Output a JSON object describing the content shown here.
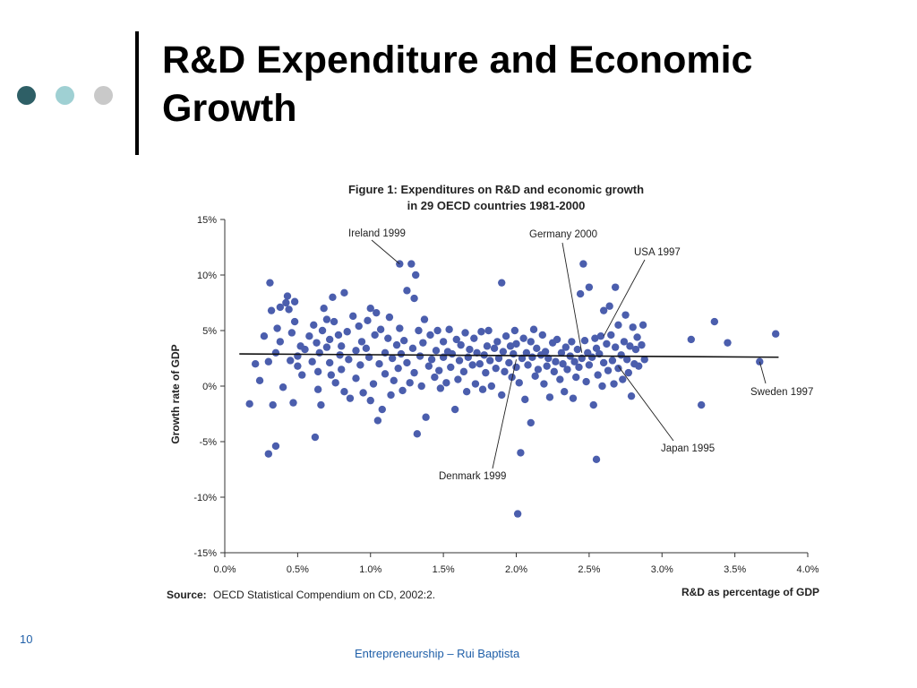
{
  "slide": {
    "title_line1": "R&D Expenditure and Economic",
    "title_line2": "Growth",
    "number": "10",
    "footer": "Entrepreneurship – Rui Baptista",
    "dot_colors": [
      "#2e5f66",
      "#9fd0d3",
      "#c9c9c9"
    ]
  },
  "chart_data": {
    "type": "scatter",
    "title_line1": "Figure 1: Expenditures on R&D and economic growth",
    "title_line2": "in 29 OECD countries 1981-2000",
    "xlabel": "R&D as percentage of GDP",
    "ylabel": "Growth rate of GDP",
    "source_label": "Source:",
    "source_text": "OECD Statistical Compendium on CD, 2002:2.",
    "xlim": [
      0,
      4.0
    ],
    "ylim": [
      -15,
      15
    ],
    "x_ticks": [
      "0.0%",
      "0.5%",
      "1.0%",
      "1.5%",
      "2.0%",
      "2.5%",
      "3.0%",
      "3.5%",
      "4.0%"
    ],
    "y_ticks": [
      "15%",
      "10%",
      "5%",
      "0%",
      "-5%",
      "-10%",
      "-15%"
    ],
    "marker_color": "#4b5ead",
    "trend": {
      "x": [
        0.1,
        3.8
      ],
      "y": [
        2.9,
        2.6
      ]
    },
    "annotations": [
      {
        "label": "Ireland 1999",
        "x": 1.2,
        "y": 11.0
      },
      {
        "label": "Germany 2000",
        "x": 2.45,
        "y": 3.0
      },
      {
        "label": "USA 1997",
        "x": 2.6,
        "y": 4.5
      },
      {
        "label": "Sweden 1997",
        "x": 3.67,
        "y": 2.2
      },
      {
        "label": "Japan 1995",
        "x": 2.7,
        "y": 1.8
      },
      {
        "label": "Denmark 1999",
        "x": 2.0,
        "y": 2.4
      }
    ],
    "points": [
      [
        0.17,
        -1.6
      ],
      [
        0.21,
        2.0
      ],
      [
        0.24,
        0.5
      ],
      [
        0.27,
        4.5
      ],
      [
        0.3,
        2.2
      ],
      [
        0.31,
        9.3
      ],
      [
        0.3,
        -6.1
      ],
      [
        0.32,
        6.8
      ],
      [
        0.33,
        -1.7
      ],
      [
        0.35,
        -5.4
      ],
      [
        0.35,
        3.0
      ],
      [
        0.36,
        5.2
      ],
      [
        0.38,
        4.0
      ],
      [
        0.38,
        7.1
      ],
      [
        0.4,
        -0.1
      ],
      [
        0.42,
        7.5
      ],
      [
        0.43,
        8.1
      ],
      [
        0.44,
        6.9
      ],
      [
        0.45,
        2.3
      ],
      [
        0.46,
        4.8
      ],
      [
        0.47,
        -1.5
      ],
      [
        0.48,
        7.6
      ],
      [
        0.48,
        5.8
      ],
      [
        0.5,
        1.8
      ],
      [
        0.5,
        2.7
      ],
      [
        0.52,
        3.6
      ],
      [
        0.53,
        1.0
      ],
      [
        0.55,
        3.3
      ],
      [
        0.58,
        4.5
      ],
      [
        0.6,
        2.2
      ],
      [
        0.61,
        5.5
      ],
      [
        0.62,
        -4.6
      ],
      [
        0.63,
        3.9
      ],
      [
        0.64,
        1.3
      ],
      [
        0.64,
        -0.3
      ],
      [
        0.65,
        3.0
      ],
      [
        0.66,
        -1.7
      ],
      [
        0.67,
        5.0
      ],
      [
        0.68,
        7.0
      ],
      [
        0.7,
        6.0
      ],
      [
        0.7,
        3.5
      ],
      [
        0.72,
        4.2
      ],
      [
        0.72,
        2.1
      ],
      [
        0.73,
        1.0
      ],
      [
        0.74,
        8.0
      ],
      [
        0.75,
        5.8
      ],
      [
        0.76,
        0.3
      ],
      [
        0.78,
        4.6
      ],
      [
        0.79,
        2.8
      ],
      [
        0.8,
        3.6
      ],
      [
        0.8,
        1.5
      ],
      [
        0.82,
        8.4
      ],
      [
        0.82,
        -0.5
      ],
      [
        0.84,
        4.9
      ],
      [
        0.85,
        2.4
      ],
      [
        0.86,
        -1.1
      ],
      [
        0.88,
        6.3
      ],
      [
        0.9,
        3.2
      ],
      [
        0.9,
        0.7
      ],
      [
        0.92,
        5.4
      ],
      [
        0.93,
        1.9
      ],
      [
        0.94,
        4.0
      ],
      [
        0.95,
        -0.6
      ],
      [
        0.97,
        3.4
      ],
      [
        0.98,
        5.9
      ],
      [
        0.99,
        2.6
      ],
      [
        1.0,
        7.0
      ],
      [
        1.0,
        -1.3
      ],
      [
        1.02,
        0.2
      ],
      [
        1.03,
        4.6
      ],
      [
        1.04,
        6.6
      ],
      [
        1.05,
        -3.1
      ],
      [
        1.06,
        2.0
      ],
      [
        1.07,
        5.1
      ],
      [
        1.08,
        -2.1
      ],
      [
        1.1,
        3.0
      ],
      [
        1.1,
        1.1
      ],
      [
        1.12,
        4.3
      ],
      [
        1.13,
        6.2
      ],
      [
        1.14,
        -0.8
      ],
      [
        1.15,
        2.5
      ],
      [
        1.16,
        0.5
      ],
      [
        1.18,
        3.7
      ],
      [
        1.19,
        1.6
      ],
      [
        1.2,
        11.0
      ],
      [
        1.2,
        5.2
      ],
      [
        1.21,
        2.9
      ],
      [
        1.22,
        -0.4
      ],
      [
        1.23,
        4.1
      ],
      [
        1.25,
        8.6
      ],
      [
        1.25,
        2.1
      ],
      [
        1.27,
        0.3
      ],
      [
        1.28,
        11.0
      ],
      [
        1.29,
        3.4
      ],
      [
        1.3,
        7.9
      ],
      [
        1.3,
        1.2
      ],
      [
        1.31,
        10.0
      ],
      [
        1.32,
        -4.3
      ],
      [
        1.33,
        5.0
      ],
      [
        1.34,
        2.7
      ],
      [
        1.35,
        0.0
      ],
      [
        1.36,
        3.9
      ],
      [
        1.37,
        6.0
      ],
      [
        1.38,
        -2.8
      ],
      [
        1.4,
        1.8
      ],
      [
        1.41,
        4.6
      ],
      [
        1.42,
        2.4
      ],
      [
        1.44,
        0.8
      ],
      [
        1.45,
        3.2
      ],
      [
        1.46,
        5.0
      ],
      [
        1.47,
        1.4
      ],
      [
        1.48,
        -0.2
      ],
      [
        1.5,
        2.6
      ],
      [
        1.5,
        4.0
      ],
      [
        1.52,
        0.3
      ],
      [
        1.53,
        3.1
      ],
      [
        1.54,
        5.1
      ],
      [
        1.55,
        1.7
      ],
      [
        1.56,
        2.9
      ],
      [
        1.58,
        -2.1
      ],
      [
        1.59,
        4.2
      ],
      [
        1.6,
        0.6
      ],
      [
        1.61,
        2.3
      ],
      [
        1.62,
        3.7
      ],
      [
        1.64,
        1.3
      ],
      [
        1.65,
        4.8
      ],
      [
        1.66,
        -0.5
      ],
      [
        1.67,
        2.6
      ],
      [
        1.68,
        3.3
      ],
      [
        1.7,
        1.9
      ],
      [
        1.71,
        4.3
      ],
      [
        1.72,
        0.2
      ],
      [
        1.73,
        3.0
      ],
      [
        1.75,
        2.0
      ],
      [
        1.76,
        4.9
      ],
      [
        1.77,
        -0.3
      ],
      [
        1.78,
        2.8
      ],
      [
        1.79,
        1.2
      ],
      [
        1.8,
        3.6
      ],
      [
        1.81,
        5.0
      ],
      [
        1.82,
        2.3
      ],
      [
        1.83,
        0.0
      ],
      [
        1.85,
        3.4
      ],
      [
        1.86,
        1.6
      ],
      [
        1.87,
        4.0
      ],
      [
        1.88,
        2.5
      ],
      [
        1.9,
        9.3
      ],
      [
        1.9,
        -0.8
      ],
      [
        1.91,
        3.1
      ],
      [
        1.92,
        1.3
      ],
      [
        1.93,
        4.5
      ],
      [
        1.95,
        2.1
      ],
      [
        1.96,
        3.6
      ],
      [
        1.97,
        0.8
      ],
      [
        1.98,
        2.9
      ],
      [
        1.99,
        5.0
      ],
      [
        2.0,
        1.7
      ],
      [
        2.0,
        3.8
      ],
      [
        2.01,
        -11.5
      ],
      [
        2.02,
        0.3
      ],
      [
        2.03,
        -6.0
      ],
      [
        2.04,
        2.5
      ],
      [
        2.05,
        4.3
      ],
      [
        2.06,
        -1.2
      ],
      [
        2.07,
        3.0
      ],
      [
        2.08,
        1.9
      ],
      [
        2.1,
        4.0
      ],
      [
        2.1,
        -3.3
      ],
      [
        2.11,
        2.6
      ],
      [
        2.12,
        5.1
      ],
      [
        2.13,
        0.9
      ],
      [
        2.14,
        3.4
      ],
      [
        2.15,
        1.5
      ],
      [
        2.17,
        2.8
      ],
      [
        2.18,
        4.6
      ],
      [
        2.19,
        0.2
      ],
      [
        2.2,
        3.1
      ],
      [
        2.21,
        1.8
      ],
      [
        2.22,
        2.5
      ],
      [
        2.23,
        -1.0
      ],
      [
        2.25,
        3.9
      ],
      [
        2.26,
        1.3
      ],
      [
        2.27,
        2.2
      ],
      [
        2.28,
        4.2
      ],
      [
        2.3,
        0.6
      ],
      [
        2.31,
        3.0
      ],
      [
        2.32,
        2.0
      ],
      [
        2.33,
        -0.5
      ],
      [
        2.34,
        3.5
      ],
      [
        2.35,
        1.5
      ],
      [
        2.37,
        2.7
      ],
      [
        2.38,
        4.0
      ],
      [
        2.39,
        -1.1
      ],
      [
        2.4,
        2.2
      ],
      [
        2.41,
        0.8
      ],
      [
        2.42,
        3.3
      ],
      [
        2.43,
        1.7
      ],
      [
        2.44,
        8.3
      ],
      [
        2.45,
        2.5
      ],
      [
        2.46,
        11.0
      ],
      [
        2.47,
        4.1
      ],
      [
        2.48,
        0.4
      ],
      [
        2.49,
        3.0
      ],
      [
        2.5,
        1.9
      ],
      [
        2.5,
        8.9
      ],
      [
        2.52,
        2.6
      ],
      [
        2.53,
        -1.7
      ],
      [
        2.54,
        4.3
      ],
      [
        2.55,
        3.4
      ],
      [
        2.55,
        -6.6
      ],
      [
        2.56,
        1.0
      ],
      [
        2.57,
        2.9
      ],
      [
        2.58,
        4.5
      ],
      [
        2.59,
        0.0
      ],
      [
        2.6,
        6.8
      ],
      [
        2.6,
        2.1
      ],
      [
        2.62,
        3.8
      ],
      [
        2.63,
        1.4
      ],
      [
        2.64,
        7.2
      ],
      [
        2.65,
        4.6
      ],
      [
        2.66,
        2.3
      ],
      [
        2.67,
        0.2
      ],
      [
        2.68,
        3.5
      ],
      [
        2.68,
        8.9
      ],
      [
        2.7,
        1.6
      ],
      [
        2.7,
        5.5
      ],
      [
        2.72,
        2.8
      ],
      [
        2.73,
        0.6
      ],
      [
        2.74,
        4.0
      ],
      [
        2.75,
        6.4
      ],
      [
        2.76,
        2.4
      ],
      [
        2.77,
        1.2
      ],
      [
        2.78,
        3.6
      ],
      [
        2.79,
        -0.9
      ],
      [
        2.8,
        5.3
      ],
      [
        2.81,
        2.0
      ],
      [
        2.82,
        3.3
      ],
      [
        2.83,
        4.4
      ],
      [
        2.84,
        1.8
      ],
      [
        2.86,
        3.7
      ],
      [
        2.87,
        5.5
      ],
      [
        2.88,
        2.4
      ],
      [
        3.2,
        4.2
      ],
      [
        3.27,
        -1.7
      ],
      [
        3.36,
        5.8
      ],
      [
        3.45,
        3.9
      ],
      [
        3.67,
        2.2
      ],
      [
        3.78,
        4.7
      ]
    ]
  }
}
